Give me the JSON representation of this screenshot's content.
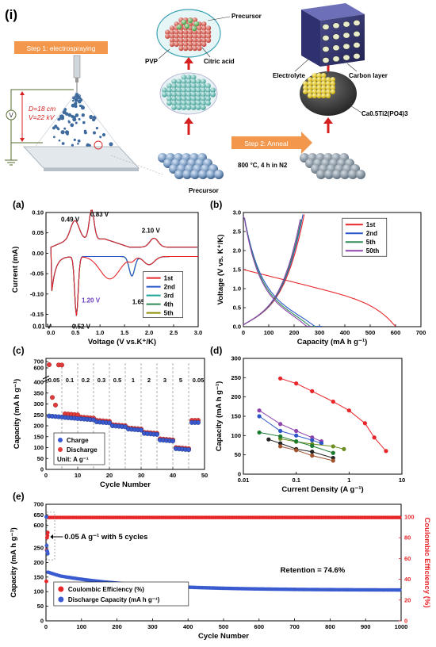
{
  "panel_i": {
    "label": "(i)",
    "step1": "Step 1: electrospraying",
    "step2": "Step 2: Anneal",
    "distance": "D=18 cm",
    "voltage": "V=22 kV",
    "v_symbol": "V",
    "precursor_top": "Precursor",
    "pvp": "PVP",
    "citric": "Citric acid",
    "precursor_bottom": "Precursor",
    "electrolyte": "Electrolyte",
    "carbon": "Carbon layer",
    "product": "Ca0.5Ti2(PO4)3",
    "anneal_cond": "800 °C, 4 h in N2"
  },
  "chart_data": [
    {
      "panel": "(a)",
      "type": "line",
      "xlabel": "Voltage (V vs.K+/K)",
      "ylabel": "Current (mA)",
      "xlim": [
        -0.1,
        3.0
      ],
      "ylim": [
        -0.18,
        0.1
      ],
      "xticks": [
        "0.0",
        "0.5",
        "1.0",
        "1.5",
        "2.0",
        "2.5",
        "3.0"
      ],
      "yticks": [
        "0.10",
        "0.05",
        "0.00",
        "-0.05",
        "-0.10",
        "-0.15"
      ],
      "annotations": [
        "0.49 V",
        "0.83 V",
        "2.10 V",
        "1.20 V",
        "1.65 V",
        "0.01 V",
        "0.52 V"
      ],
      "legend": [
        "1st",
        "2nd",
        "3rd",
        "4th",
        "5th"
      ],
      "colors": [
        "#e8262a",
        "#2a56c9",
        "#1aa39a",
        "#2e8b57",
        "#8c8c00"
      ]
    },
    {
      "panel": "(b)",
      "type": "line",
      "xlabel": "Capacity (mA h g-1)",
      "ylabel": "Voltage (V vs. K+/K)",
      "xlim": [
        0,
        700
      ],
      "ylim": [
        0,
        3.0
      ],
      "xticks": [
        "0",
        "100",
        "200",
        "300",
        "400",
        "500",
        "600",
        "700"
      ],
      "yticks": [
        "0.0",
        "0.5",
        "1.0",
        "1.5",
        "2.0",
        "2.5",
        "3.0"
      ],
      "legend": [
        "1st",
        "2nd",
        "5th",
        "50th"
      ],
      "colors": [
        "#e8262a",
        "#2a56c9",
        "#2e8b57",
        "#8e44ad"
      ]
    },
    {
      "panel": "(c)",
      "type": "scatter",
      "xlabel": "Cycle Number",
      "ylabel": "Capacity (mA h g-1)",
      "xlim": [
        0,
        50
      ],
      "xticks": [
        "0",
        "10",
        "20",
        "30",
        "40",
        "50"
      ],
      "yticks": [
        "0",
        "50",
        "100",
        "150",
        "200",
        "250",
        "300",
        "350",
        "400",
        "600",
        "700"
      ],
      "rates": [
        "0.05",
        "0.1",
        "0.2",
        "0.3",
        "0.5",
        "1",
        "2",
        "3",
        "5",
        "0.05"
      ],
      "legend": [
        "Charge",
        "Discharge"
      ],
      "unit": "Unit: A g-1",
      "charge": [
        [
          1,
          245
        ],
        [
          5,
          238
        ],
        [
          10,
          232
        ],
        [
          15,
          218
        ],
        [
          20,
          200
        ],
        [
          25,
          185
        ],
        [
          30,
          165
        ],
        [
          35,
          135
        ],
        [
          40,
          95
        ],
        [
          45,
          60
        ],
        [
          48,
          215
        ]
      ],
      "discharge": [
        [
          1,
          650
        ],
        [
          5,
          255
        ],
        [
          10,
          240
        ],
        [
          15,
          225
        ],
        [
          20,
          205
        ],
        [
          25,
          190
        ],
        [
          30,
          170
        ],
        [
          35,
          140
        ],
        [
          40,
          100
        ],
        [
          45,
          62
        ],
        [
          48,
          225
        ]
      ]
    },
    {
      "panel": "(d)",
      "type": "line",
      "xlabel": "Current Density (A g-1)",
      "ylabel": "Capacity (mA h g-1)",
      "log_x": true,
      "xticks": [
        "0.01",
        "0.1",
        "1",
        "10"
      ],
      "yticks": [
        "0",
        "50",
        "100",
        "150",
        "200",
        "250",
        "300"
      ],
      "series": [
        {
          "color": "#e8262a",
          "points": [
            [
              0.05,
              248
            ],
            [
              0.1,
              235
            ],
            [
              0.2,
              215
            ],
            [
              0.5,
              188
            ],
            [
              1,
              165
            ],
            [
              2,
              132
            ],
            [
              3,
              95
            ],
            [
              5,
              60
            ]
          ]
        },
        {
          "color": "#8e44ad",
          "points": [
            [
              0.02,
              165
            ],
            [
              0.05,
              130
            ],
            [
              0.1,
              112
            ],
            [
              0.2,
              95
            ],
            [
              0.3,
              85
            ]
          ]
        },
        {
          "color": "#2a56c9",
          "points": [
            [
              0.02,
              150
            ],
            [
              0.05,
              112
            ],
            [
              0.1,
              100
            ],
            [
              0.2,
              88
            ],
            [
              0.3,
              80
            ]
          ]
        },
        {
          "color": "#6b8e23",
          "points": [
            [
              0.05,
              92
            ],
            [
              0.1,
              84
            ],
            [
              0.2,
              78
            ],
            [
              0.5,
              72
            ],
            [
              0.8,
              65
            ]
          ]
        },
        {
          "color": "#1a7a2e",
          "points": [
            [
              0.02,
              108
            ],
            [
              0.05,
              98
            ],
            [
              0.1,
              85
            ],
            [
              0.2,
              73
            ],
            [
              0.5,
              55
            ]
          ]
        },
        {
          "color": "#222222",
          "points": [
            [
              0.03,
              90
            ],
            [
              0.05,
              80
            ],
            [
              0.1,
              65
            ],
            [
              0.2,
              58
            ],
            [
              0.5,
              42
            ]
          ]
        },
        {
          "color": "#a0522d",
          "points": [
            [
              0.05,
              72
            ],
            [
              0.1,
              62
            ],
            [
              0.2,
              48
            ],
            [
              0.5,
              35
            ]
          ]
        }
      ]
    },
    {
      "panel": "(e)",
      "type": "scatter",
      "xlabel": "Cycle Number",
      "ylabel": "Capacity (mA h g-1)",
      "ylabel2": "Coulombic Efficiency (%)",
      "xlim": [
        0,
        1000
      ],
      "xticks": [
        "0",
        "100",
        "200",
        "300",
        "400",
        "500",
        "600",
        "700",
        "800",
        "900",
        "1000"
      ],
      "yticks": [
        "0",
        "50",
        "100",
        "150",
        "200",
        "250",
        "600",
        "650",
        "700"
      ],
      "yticks2": [
        "0",
        "20",
        "40",
        "60",
        "80",
        "100"
      ],
      "note": "0.05 A g-1 with 5 cycles",
      "retention": "Retention = 74.6%",
      "legend": [
        "Coulombic Efficiency (%)",
        "Discharge Capacity (mA h g-1)"
      ]
    }
  ]
}
